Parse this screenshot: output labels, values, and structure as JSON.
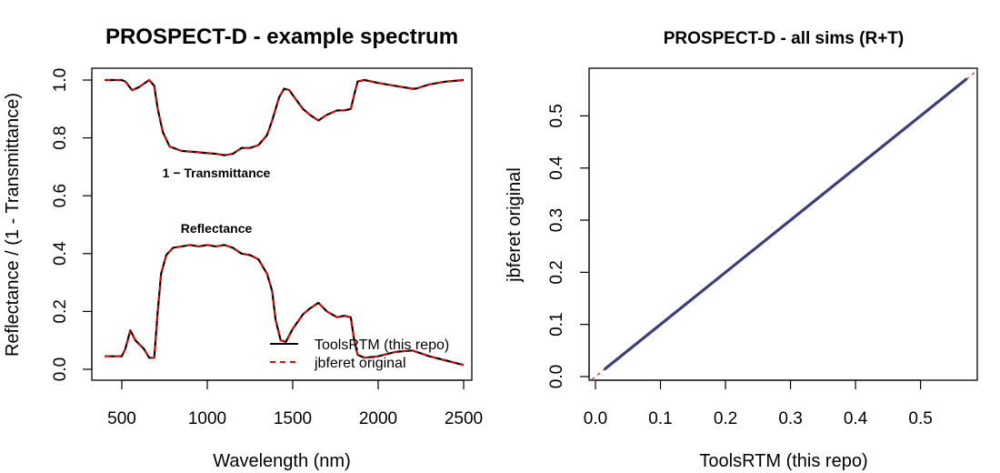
{
  "chart_data": [
    {
      "type": "line",
      "title": "PROSPECT-D - example spectrum",
      "xlabel": "Wavelength (nm)",
      "ylabel": "Reflectance / (1 - Transmittance)",
      "xlim": [
        400,
        2500
      ],
      "ylim": [
        0,
        1
      ],
      "x_ticks": [
        500,
        1000,
        1500,
        2000,
        2500
      ],
      "y_ticks": [
        0.0,
        0.2,
        0.4,
        0.6,
        0.8,
        1.0
      ],
      "x_tick_labels": [
        "500",
        "1000",
        "1500",
        "2000",
        "2500"
      ],
      "y_tick_labels": [
        "0.0",
        "0.2",
        "0.4",
        "0.6",
        "0.8",
        "1.0"
      ],
      "annotations": [
        {
          "text": "1 − Transmittance",
          "x": 930,
          "y": 0.685
        },
        {
          "text": "Reflectance",
          "x": 1000,
          "y": 0.485
        }
      ],
      "legend": {
        "position": "bottom-right",
        "entries": [
          {
            "label": "ToolsRTM (this repo)",
            "color": "#000000",
            "style": "solid"
          },
          {
            "label": "jbferet original",
            "color": "#ff0000",
            "style": "dashed"
          }
        ]
      },
      "series": [
        {
          "name": "ToolsRTM (this repo)",
          "color": "#000000",
          "style": "solid",
          "curves": [
            {
              "label": "1 − Transmittance",
              "x": [
                400,
                500,
                520,
                560,
                600,
                660,
                690,
                710,
                740,
                780,
                850,
                950,
                1050,
                1100,
                1150,
                1200,
                1250,
                1300,
                1350,
                1380,
                1420,
                1450,
                1480,
                1510,
                1560,
                1600,
                1650,
                1700,
                1760,
                1800,
                1840,
                1860,
                1880,
                1920,
                2000,
                2100,
                2200,
                2220,
                2300,
                2400,
                2500
              ],
              "y": [
                1.0,
                1.0,
                0.995,
                0.965,
                0.975,
                1.0,
                0.98,
                0.9,
                0.82,
                0.77,
                0.755,
                0.75,
                0.745,
                0.74,
                0.745,
                0.765,
                0.765,
                0.775,
                0.81,
                0.86,
                0.94,
                0.97,
                0.965,
                0.94,
                0.9,
                0.88,
                0.86,
                0.88,
                0.895,
                0.895,
                0.9,
                0.95,
                0.995,
                1.0,
                0.99,
                0.98,
                0.97,
                0.97,
                0.985,
                0.995,
                1.0
              ]
            },
            {
              "label": "Reflectance",
              "x": [
                400,
                500,
                520,
                550,
                580,
                630,
                660,
                690,
                710,
                730,
                760,
                800,
                850,
                900,
                950,
                1000,
                1050,
                1100,
                1150,
                1200,
                1250,
                1300,
                1350,
                1380,
                1400,
                1430,
                1460,
                1500,
                1560,
                1600,
                1650,
                1700,
                1760,
                1800,
                1840,
                1860,
                1880,
                1920,
                2000,
                2100,
                2200,
                2300,
                2400,
                2500
              ],
              "y": [
                0.045,
                0.045,
                0.07,
                0.135,
                0.1,
                0.07,
                0.04,
                0.04,
                0.2,
                0.33,
                0.395,
                0.42,
                0.425,
                0.43,
                0.425,
                0.43,
                0.425,
                0.43,
                0.42,
                0.4,
                0.395,
                0.38,
                0.33,
                0.27,
                0.17,
                0.1,
                0.095,
                0.14,
                0.19,
                0.21,
                0.23,
                0.2,
                0.18,
                0.185,
                0.18,
                0.1,
                0.05,
                0.04,
                0.045,
                0.06,
                0.065,
                0.045,
                0.03,
                0.015
              ]
            }
          ]
        },
        {
          "name": "jbferet original",
          "color": "#ff0000",
          "style": "dashed",
          "same_as": "ToolsRTM (this repo)"
        }
      ]
    },
    {
      "type": "scatter",
      "title": "PROSPECT-D - all sims (R+T)",
      "xlabel": "ToolsRTM (this repo)",
      "ylabel": "jbferet original",
      "xlim": [
        0.0,
        0.57
      ],
      "ylim": [
        0.0,
        0.57
      ],
      "x_ticks": [
        0.0,
        0.1,
        0.2,
        0.3,
        0.4,
        0.5
      ],
      "y_ticks": [
        0.0,
        0.1,
        0.2,
        0.3,
        0.4,
        0.5
      ],
      "x_tick_labels": [
        "0.0",
        "0.1",
        "0.2",
        "0.3",
        "0.4",
        "0.5"
      ],
      "y_tick_labels": [
        "0.0",
        "0.1",
        "0.2",
        "0.3",
        "0.4",
        "0.5"
      ],
      "points_range": [
        0.015,
        0.57
      ],
      "point_color": "#3a3f7a",
      "reference_line": {
        "type": "1:1",
        "color": "#ff0000",
        "style": "dashed"
      }
    }
  ]
}
